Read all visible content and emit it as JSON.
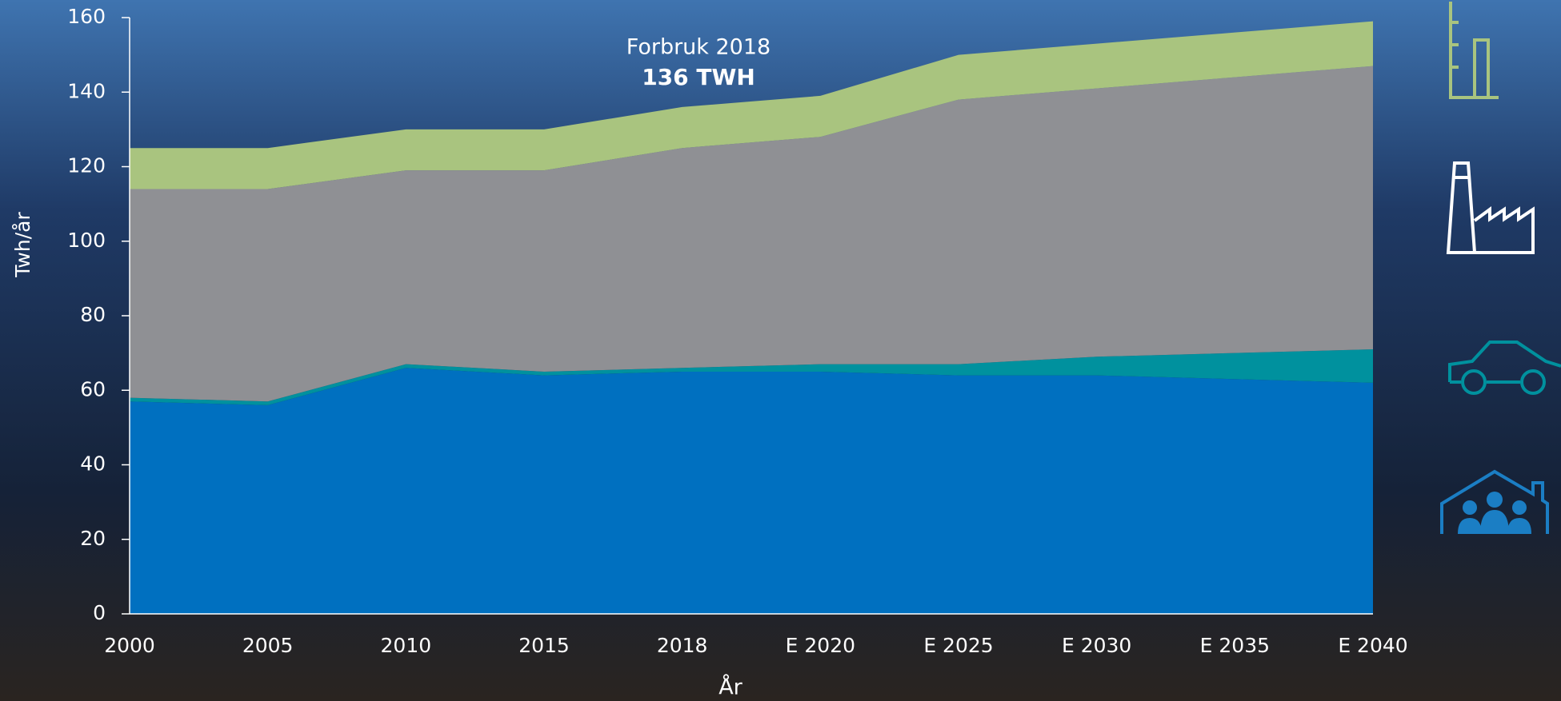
{
  "chart_data": {
    "type": "stacked-area",
    "annotations": [
      "Forbruk 2018",
      "136 TWH"
    ],
    "y_label": "Twh/år",
    "x_label": "År",
    "categories": [
      "2000",
      "2005",
      "2010",
      "2015",
      "2018",
      "E 2020",
      "E 2025",
      "E 2030",
      "E 2035",
      "E 2040"
    ],
    "series": [
      {
        "color": "#0070c0",
        "values": [
          57,
          56,
          66,
          64,
          65,
          65,
          64,
          64,
          63,
          62
        ]
      },
      {
        "color": "#00919e",
        "values": [
          1,
          1,
          1,
          1,
          1,
          2,
          3,
          5,
          7,
          9
        ]
      },
      {
        "color": "#8f9094",
        "values": [
          56,
          57,
          52,
          54,
          59,
          61,
          71,
          72,
          74,
          76
        ]
      },
      {
        "color": "#a9c47f",
        "values": [
          11,
          11,
          11,
          11,
          11,
          11,
          12,
          12,
          12,
          12
        ]
      }
    ],
    "ylim": [
      0,
      160
    ],
    "yticks": [
      0,
      20,
      40,
      60,
      80,
      100,
      120,
      140,
      160
    ]
  }
}
